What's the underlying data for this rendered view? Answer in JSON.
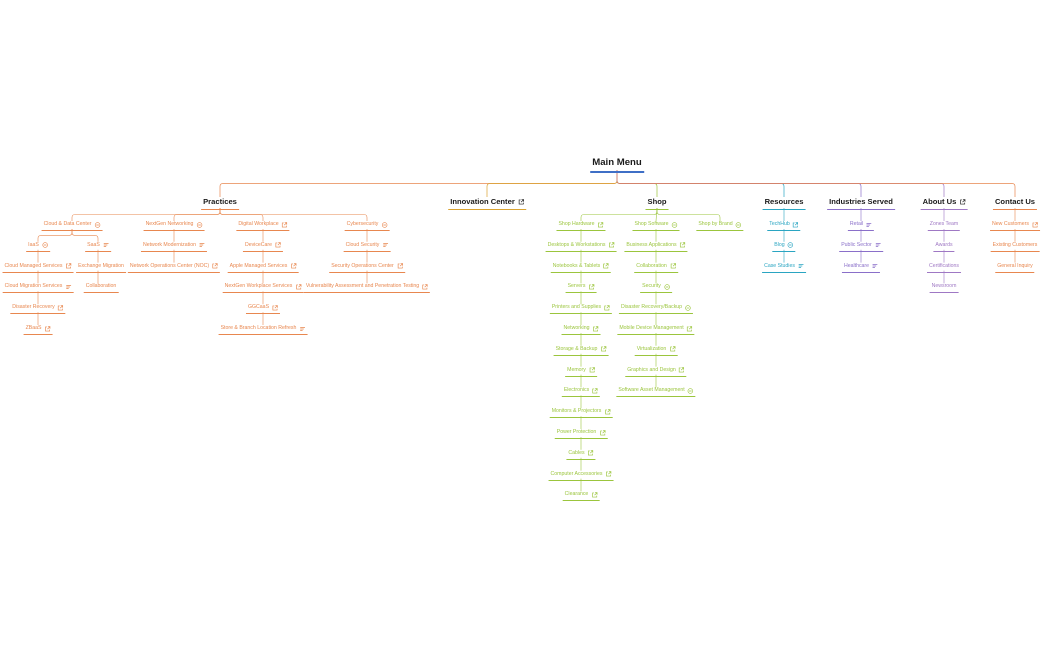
{
  "colors": {
    "root": "#3f6fc6",
    "practices": "#e8874f",
    "innovation": "#d9a332",
    "shop": "#9bc53d",
    "resources": "#2aa5c2",
    "industries": "#8a6fc9",
    "about": "#9f78c4",
    "contact": "#e8874f",
    "text": "#333333"
  },
  "icon_legend": {
    "external-link-icon": "opens external page",
    "collapse-icon": "collapsible submenu",
    "menu-lines-icon": "list menu"
  },
  "tree": {
    "label": "Main Menu",
    "children": [
      {
        "label": "Practices",
        "color": "practices",
        "children": [
          {
            "label": "Cloud & Data Center",
            "icon": "collapse-icon",
            "children": [
              {
                "label": "IaaS",
                "icon": "collapse-icon",
                "children": [
                  {
                    "label": "Cloud Managed Services",
                    "icon": "external-link-icon"
                  },
                  {
                    "label": "Cloud Migration Services",
                    "icon": "menu-lines-icon"
                  },
                  {
                    "label": "Disaster Recovery",
                    "icon": "external-link-icon"
                  },
                  {
                    "label": "ZBaaS",
                    "icon": "external-link-icon"
                  }
                ]
              },
              {
                "label": "SaaS",
                "icon": "menu-lines-icon",
                "children": [
                  {
                    "label": "Exchange Migration"
                  },
                  {
                    "label": "Collaboration"
                  }
                ]
              }
            ]
          },
          {
            "label": "NextGen Networking",
            "icon": "collapse-icon",
            "children": [
              {
                "label": "Network Modernization",
                "icon": "menu-lines-icon"
              },
              {
                "label": "Network Operations Center (NOC)",
                "icon": "external-link-icon"
              }
            ]
          },
          {
            "label": "Digital Workplace",
            "icon": "external-link-icon",
            "children": [
              {
                "label": "DeviceCare",
                "icon": "external-link-icon"
              },
              {
                "label": "Apple Managed Services",
                "icon": "external-link-icon"
              },
              {
                "label": "NextGen Workplace Services",
                "icon": "external-link-icon"
              },
              {
                "label": "GGCaaS",
                "icon": "external-link-icon"
              },
              {
                "label": "Store & Branch Location Refresh",
                "icon": "menu-lines-icon"
              }
            ]
          },
          {
            "label": "Cybersecurity",
            "icon": "collapse-icon",
            "children": [
              {
                "label": "Cloud Security",
                "icon": "menu-lines-icon"
              },
              {
                "label": "Security Operations Center",
                "icon": "external-link-icon"
              },
              {
                "label": "Vulnerability Assessment and Penetration Testing",
                "icon": "external-link-icon"
              }
            ]
          }
        ]
      },
      {
        "label": "Innovation Center",
        "color": "innovation",
        "icon": "external-link-icon"
      },
      {
        "label": "Shop",
        "color": "shop",
        "children": [
          {
            "label": "Shop Hardware",
            "icon": "external-link-icon",
            "children": [
              {
                "label": "Desktops & Workstations",
                "icon": "external-link-icon"
              },
              {
                "label": "Notebooks & Tablets",
                "icon": "external-link-icon"
              },
              {
                "label": "Servers",
                "icon": "external-link-icon"
              },
              {
                "label": "Printers and Supplies",
                "icon": "external-link-icon"
              },
              {
                "label": "Networking",
                "icon": "external-link-icon"
              },
              {
                "label": "Storage & Backup",
                "icon": "external-link-icon"
              },
              {
                "label": "Memory",
                "icon": "external-link-icon"
              },
              {
                "label": "Electronics",
                "icon": "external-link-icon"
              },
              {
                "label": "Monitors & Projectors",
                "icon": "external-link-icon"
              },
              {
                "label": "Power Protection",
                "icon": "external-link-icon"
              },
              {
                "label": "Cables",
                "icon": "external-link-icon"
              },
              {
                "label": "Computer Accessories",
                "icon": "external-link-icon"
              },
              {
                "label": "Clearance",
                "icon": "external-link-icon"
              }
            ]
          },
          {
            "label": "Shop Software",
            "icon": "collapse-icon",
            "children": [
              {
                "label": "Business Applications",
                "icon": "external-link-icon"
              },
              {
                "label": "Collaboration",
                "icon": "external-link-icon"
              },
              {
                "label": "Security",
                "icon": "collapse-icon"
              },
              {
                "label": "Disaster Recovery/Backup",
                "icon": "collapse-icon"
              },
              {
                "label": "Mobile Device Management",
                "icon": "external-link-icon"
              },
              {
                "label": "Virtualization",
                "icon": "external-link-icon"
              },
              {
                "label": "Graphics and Design",
                "icon": "external-link-icon"
              },
              {
                "label": "Software Asset Management",
                "icon": "collapse-icon"
              }
            ]
          },
          {
            "label": "Shop by Brand",
            "icon": "collapse-icon"
          }
        ]
      },
      {
        "label": "Resources",
        "color": "resources",
        "children": [
          {
            "label": "TechHub",
            "icon": "external-link-icon"
          },
          {
            "label": "Blog",
            "icon": "collapse-icon"
          },
          {
            "label": "Case Studies",
            "icon": "menu-lines-icon"
          }
        ]
      },
      {
        "label": "Industries Served",
        "color": "industries",
        "children": [
          {
            "label": "Retail",
            "icon": "menu-lines-icon"
          },
          {
            "label": "Public Sector",
            "icon": "menu-lines-icon"
          },
          {
            "label": "Healthcare",
            "icon": "menu-lines-icon"
          }
        ]
      },
      {
        "label": "About Us",
        "color": "about",
        "icon": "external-link-icon",
        "children": [
          {
            "label": "Zones Team"
          },
          {
            "label": "Awards"
          },
          {
            "label": "Certifications"
          },
          {
            "label": "Newsroom"
          }
        ]
      },
      {
        "label": "Contact Us",
        "color": "contact",
        "children": [
          {
            "label": "New Customers",
            "icon": "external-link-icon"
          },
          {
            "label": "Existing Customers"
          },
          {
            "label": "General Inquiry"
          }
        ]
      }
    ]
  }
}
